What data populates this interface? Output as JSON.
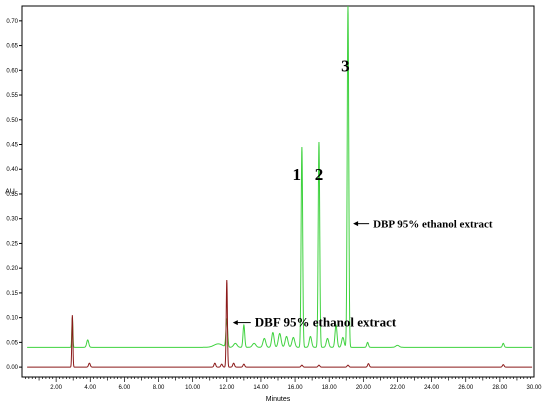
{
  "chart_data": {
    "type": "line",
    "xlabel": "Minutes",
    "ylabel": "AU",
    "xlim": [
      0,
      30
    ],
    "ylim": [
      -0.02,
      0.73
    ],
    "x_ticks": [
      "2.00",
      "4.00",
      "6.00",
      "8.00",
      "10.00",
      "12.00",
      "14.00",
      "16.00",
      "18.00",
      "20.00",
      "22.00",
      "24.00",
      "26.00",
      "28.00",
      "30.00"
    ],
    "y_ticks": [
      "0.00",
      "0.05",
      "0.10",
      "0.15",
      "0.20",
      "0.25",
      "0.30",
      "0.35",
      "0.40",
      "0.45",
      "0.50",
      "0.55",
      "0.60",
      "0.65",
      "0.70"
    ],
    "series": [
      {
        "color": "#3fd23f",
        "baseline": 0.04,
        "peaks": [
          [
            2.95,
            0.06,
            0.03
          ],
          [
            3.85,
            0.015,
            0.06
          ],
          [
            11.5,
            0.007,
            0.25
          ],
          [
            12.0,
            0.055,
            0.05
          ],
          [
            12.5,
            0.008,
            0.1
          ],
          [
            13.0,
            0.045,
            0.05
          ],
          [
            13.6,
            0.008,
            0.1
          ],
          [
            14.2,
            0.018,
            0.08
          ],
          [
            14.7,
            0.03,
            0.07
          ],
          [
            15.1,
            0.028,
            0.08
          ],
          [
            15.5,
            0.022,
            0.08
          ],
          [
            15.9,
            0.02,
            0.08
          ],
          [
            16.4,
            0.405,
            0.045
          ],
          [
            16.9,
            0.022,
            0.07
          ],
          [
            17.4,
            0.415,
            0.045
          ],
          [
            17.9,
            0.018,
            0.07
          ],
          [
            18.4,
            0.045,
            0.06
          ],
          [
            18.8,
            0.02,
            0.07
          ],
          [
            19.1,
            0.69,
            0.045
          ],
          [
            20.25,
            0.01,
            0.05
          ],
          [
            22.0,
            0.004,
            0.1
          ],
          [
            28.2,
            0.008,
            0.05
          ]
        ]
      },
      {
        "color": "#8b1a1a",
        "baseline": 0.0,
        "peaks": [
          [
            2.95,
            0.105,
            0.03
          ],
          [
            3.95,
            0.008,
            0.05
          ],
          [
            11.3,
            0.008,
            0.05
          ],
          [
            11.7,
            0.006,
            0.05
          ],
          [
            12.0,
            0.176,
            0.035
          ],
          [
            12.4,
            0.008,
            0.05
          ],
          [
            13.0,
            0.006,
            0.05
          ],
          [
            16.4,
            0.004,
            0.05
          ],
          [
            17.4,
            0.004,
            0.05
          ],
          [
            19.1,
            0.004,
            0.05
          ],
          [
            20.3,
            0.007,
            0.05
          ],
          [
            28.2,
            0.005,
            0.05
          ]
        ]
      }
    ],
    "peak_labels": [
      {
        "text": "1",
        "x": 16.1,
        "y": 0.39
      },
      {
        "text": "2",
        "x": 17.4,
        "y": 0.39
      },
      {
        "text": "3",
        "x": 18.95,
        "y": 0.61
      }
    ],
    "annotations": [
      {
        "text": "DBP 95% ethanol extract",
        "arrow_to": [
          19.4,
          0.29
        ]
      },
      {
        "text": "DBF 95% ethanol extract",
        "arrow_to": [
          12.35,
          0.09
        ]
      }
    ]
  }
}
